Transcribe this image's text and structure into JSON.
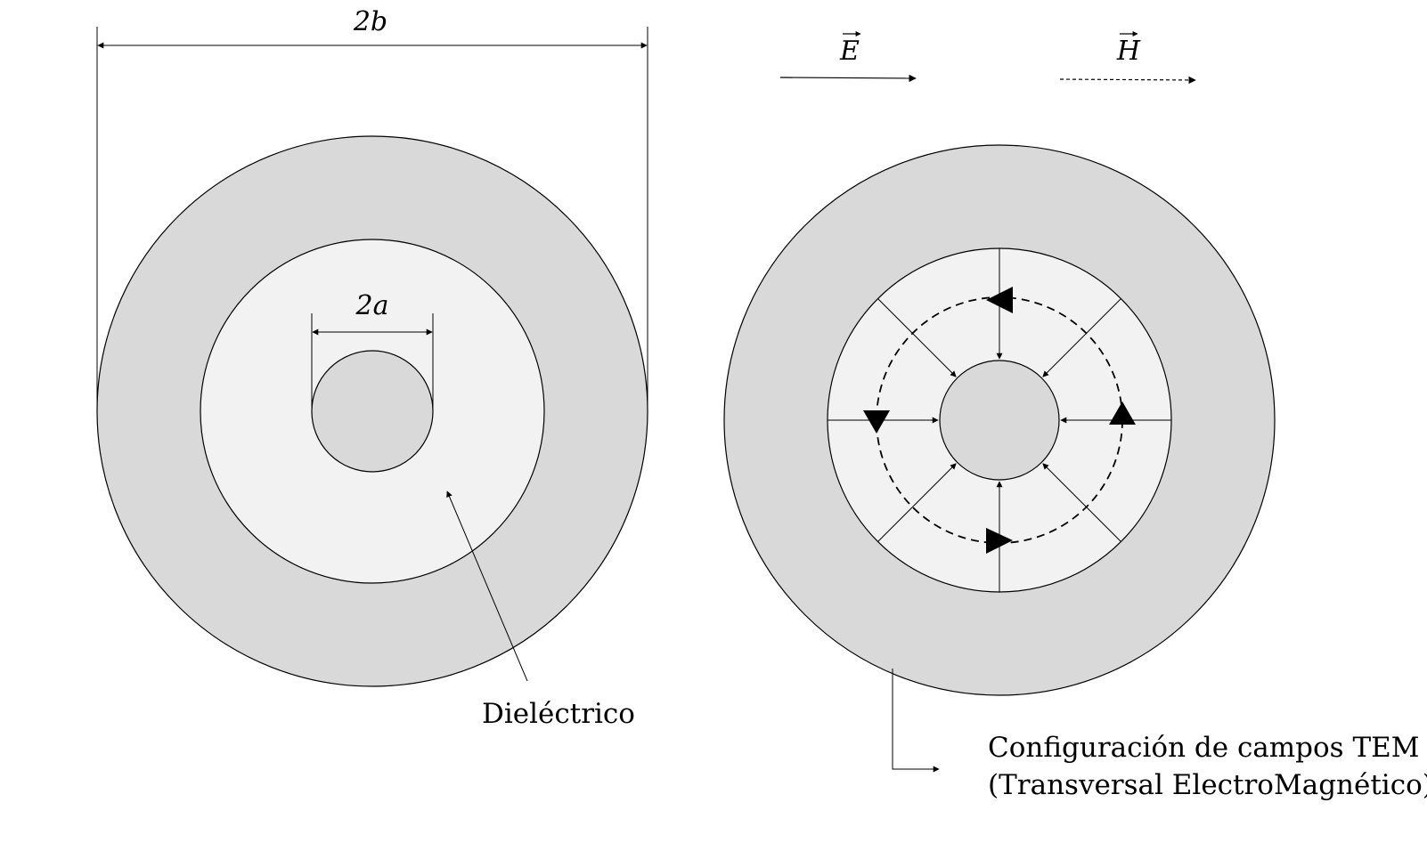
{
  "colors": {
    "outer_conductor": "#d9d9d9",
    "dielectric": "#f2f2f2",
    "inner_conductor": "#d9d9d9",
    "stroke": "#000000"
  },
  "labels": {
    "outer_diameter": "2b",
    "inner_diameter": "2a",
    "dielectric": "Dieléctrico",
    "legend_e": "E",
    "legend_h": "H",
    "tem_line1": "Configuración de campos TEM",
    "tem_line2": "(Transversal ElectroMagnético)"
  }
}
